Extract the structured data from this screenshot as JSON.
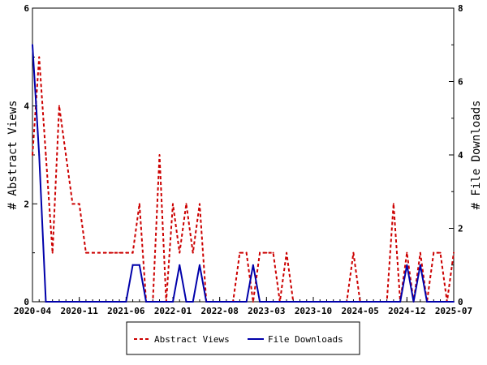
{
  "chart_data": {
    "type": "line",
    "x": [
      "2020-04",
      "2020-05",
      "2020-06",
      "2020-07",
      "2020-08",
      "2020-09",
      "2020-10",
      "2020-11",
      "2020-12",
      "2021-01",
      "2021-02",
      "2021-03",
      "2021-04",
      "2021-05",
      "2021-06",
      "2021-07",
      "2021-08",
      "2021-09",
      "2021-10",
      "2021-11",
      "2021-12",
      "2022-01",
      "2022-02",
      "2022-03",
      "2022-04",
      "2022-05",
      "2022-06",
      "2022-07",
      "2022-08",
      "2022-09",
      "2022-10",
      "2022-11",
      "2022-12",
      "2023-01",
      "2023-02",
      "2023-03",
      "2023-04",
      "2023-05",
      "2023-06",
      "2023-07",
      "2023-08",
      "2023-09",
      "2023-10",
      "2023-11",
      "2023-12",
      "2024-01",
      "2024-02",
      "2024-03",
      "2024-04",
      "2024-05",
      "2024-06",
      "2024-07",
      "2024-08",
      "2024-09",
      "2024-10",
      "2024-11",
      "2024-12",
      "2025-01",
      "2025-02",
      "2025-03",
      "2025-04",
      "2025-05",
      "2025-06",
      "2025-07"
    ],
    "series": [
      {
        "name": "Abstract Views",
        "axis": "left",
        "color": "#cc0000",
        "style": "dashed",
        "values": [
          3,
          5,
          3,
          1,
          4,
          3,
          2,
          2,
          1,
          1,
          1,
          1,
          1,
          1,
          1,
          1,
          2,
          0,
          0,
          3,
          0,
          2,
          1,
          2,
          1,
          2,
          0,
          0,
          0,
          0,
          0,
          1,
          1,
          0,
          1,
          1,
          1,
          0,
          1,
          0,
          0,
          0,
          0,
          0,
          0,
          0,
          0,
          0,
          1,
          0,
          0,
          0,
          0,
          0,
          2,
          0,
          1,
          0,
          1,
          0,
          1,
          1,
          0,
          1
        ]
      },
      {
        "name": "File Downloads",
        "axis": "right",
        "color": "#0000aa",
        "style": "solid",
        "values": [
          7,
          4,
          0,
          0,
          0,
          0,
          0,
          0,
          0,
          0,
          0,
          0,
          0,
          0,
          0,
          1,
          1,
          0,
          0,
          0,
          0,
          0,
          1,
          0,
          0,
          1,
          0,
          0,
          0,
          0,
          0,
          0,
          0,
          1,
          0,
          0,
          0,
          0,
          0,
          0,
          0,
          0,
          0,
          0,
          0,
          0,
          0,
          0,
          0,
          0,
          0,
          0,
          0,
          0,
          0,
          0,
          1,
          0,
          1,
          0,
          0,
          0,
          0,
          0
        ]
      }
    ],
    "xticks": [
      "2020-04",
      "2020-11",
      "2021-06",
      "2022-01",
      "2022-08",
      "2023-03",
      "2023-10",
      "2024-05",
      "2024-12",
      "2025-07"
    ],
    "ylabel": "# Abstract Views",
    "ylabel_right": "# File Downloads",
    "ylim": [
      0,
      6
    ],
    "ylim_right": [
      0,
      8
    ],
    "yticks": [
      0,
      2,
      4,
      6
    ],
    "yticks_right": [
      0,
      2,
      4,
      6,
      8
    ],
    "grid": false,
    "legend_position": "bottom-center"
  }
}
